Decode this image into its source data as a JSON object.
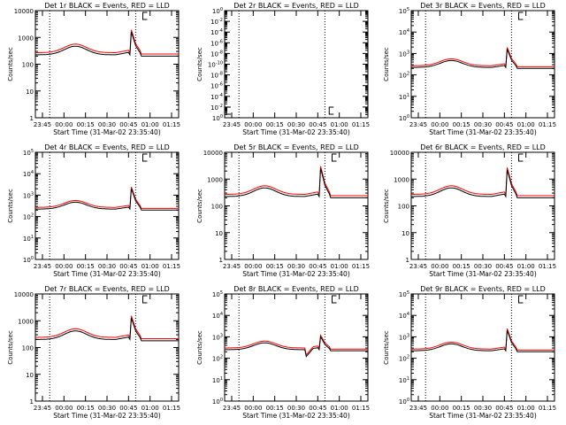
{
  "chart_data": [
    {
      "type": "line",
      "title": "Det 1r BLACK = Events, RED = LLD",
      "xlabel": "Start Time (31-Mar-02 23:35:40)",
      "ylabel": "Counts/sec",
      "xticks": [
        "23:45",
        "00:00",
        "00:15",
        "00:30",
        "00:45",
        "01:00",
        "01:15"
      ],
      "xlim": [
        0,
        100
      ],
      "yscale": "log",
      "ylim_exp": [
        0,
        4
      ],
      "ytick_style": "plain",
      "ytick_labels": [
        "1",
        "10",
        "100",
        "1000",
        "10000"
      ],
      "markers": [
        10,
        70
      ],
      "bracket": {
        "y": "top",
        "x": 75
      },
      "shape": "std",
      "base_exp": 2.35,
      "lld_offset": 0.08,
      "spike_exp": 3.2,
      "series": [
        {
          "name": "Events",
          "color": "#000000"
        },
        {
          "name": "LLD",
          "color": "#ff0000"
        }
      ]
    },
    {
      "type": "line",
      "title": "Det 2r BLACK = Events, RED = LLD",
      "xlabel": "Start Time (31-Mar-02 23:35:40)",
      "ylabel": "Counts/sec",
      "xticks": [
        "23:45",
        "00:00",
        "00:15",
        "00:30",
        "00:45",
        "01:00",
        "01:15"
      ],
      "xlim": [
        0,
        100
      ],
      "yscale": "log",
      "ylim_exp": [
        0,
        10
      ],
      "ytick_style": "sci",
      "ytick_labels": [
        "10^0",
        "10^-2",
        "10^-4",
        "10^-6",
        "10^-8",
        "10^-10",
        "10^-8",
        "10^-6",
        "10^-4",
        "10^-2",
        "10^0"
      ],
      "markers": [
        10,
        70
      ],
      "bracket": {
        "y": "bottom",
        "x": [
          0,
          73
        ]
      },
      "shape": "none",
      "series": [
        {
          "name": "Events",
          "color": "#000000"
        },
        {
          "name": "LLD",
          "color": "#ff0000"
        }
      ]
    },
    {
      "type": "line",
      "title": "Det 3r BLACK = Events, RED = LLD",
      "xlabel": "Start Time (31-Mar-02 23:35:40)",
      "ylabel": "Counts/sec",
      "xticks": [
        "23:45",
        "00:00",
        "00:15",
        "00:30",
        "00:45",
        "01:00",
        "01:15"
      ],
      "xlim": [
        0,
        100
      ],
      "yscale": "log",
      "ylim_exp": [
        0,
        5
      ],
      "ytick_style": "sci",
      "ytick_labels": [
        "10^0",
        "10^1",
        "10^2",
        "10^3",
        "10^4",
        "10^5"
      ],
      "markers": [
        10,
        70
      ],
      "bracket": {
        "y": "top",
        "x": 75
      },
      "shape": "std",
      "base_exp": 2.35,
      "lld_offset": 0.08,
      "spike_exp": 3.2,
      "series": [
        {
          "name": "Events",
          "color": "#000000"
        },
        {
          "name": "LLD",
          "color": "#ff0000"
        }
      ]
    },
    {
      "type": "line",
      "title": "Det 4r BLACK = Events, RED = LLD",
      "xlabel": "Start Time (31-Mar-02 23:35:40)",
      "ylabel": "Counts/sec",
      "xticks": [
        "23:45",
        "00:00",
        "00:15",
        "00:30",
        "00:45",
        "01:00",
        "01:15"
      ],
      "xlim": [
        0,
        100
      ],
      "yscale": "log",
      "ylim_exp": [
        0,
        5
      ],
      "ytick_style": "sci",
      "ytick_labels": [
        "10^0",
        "10^1",
        "10^2",
        "10^3",
        "10^4",
        "10^5"
      ],
      "markers": [
        10,
        70
      ],
      "bracket": {
        "y": "top",
        "x": 75
      },
      "shape": "std",
      "base_exp": 2.35,
      "lld_offset": 0.08,
      "spike_exp": 3.3,
      "series": [
        {
          "name": "Events",
          "color": "#000000"
        },
        {
          "name": "LLD",
          "color": "#ff0000"
        }
      ]
    },
    {
      "type": "line",
      "title": "Det 5r BLACK = Events, RED = LLD",
      "xlabel": "Start Time (31-Mar-02 23:35:40)",
      "ylabel": "Counts/sec",
      "xticks": [
        "23:45",
        "00:00",
        "00:15",
        "00:30",
        "00:45",
        "01:00",
        "01:15"
      ],
      "xlim": [
        0,
        100
      ],
      "yscale": "log",
      "ylim_exp": [
        0,
        4
      ],
      "ytick_style": "plain",
      "ytick_labels": [
        "1",
        "10",
        "100",
        "1000",
        "10000"
      ],
      "markers": [
        10,
        70
      ],
      "bracket": {
        "y": "top",
        "x": 75
      },
      "shape": "std",
      "base_exp": 2.35,
      "lld_offset": 0.08,
      "spike_exp": 3.4,
      "series": [
        {
          "name": "Events",
          "color": "#000000"
        },
        {
          "name": "LLD",
          "color": "#ff0000"
        }
      ]
    },
    {
      "type": "line",
      "title": "Det 6r BLACK = Events, RED = LLD",
      "xlabel": "Start Time (31-Mar-02 23:35:40)",
      "ylabel": "Counts/sec",
      "xticks": [
        "23:45",
        "00:00",
        "00:15",
        "00:30",
        "00:45",
        "01:00",
        "01:15"
      ],
      "xlim": [
        0,
        100
      ],
      "yscale": "log",
      "ylim_exp": [
        0,
        4
      ],
      "ytick_style": "plain",
      "ytick_labels": [
        "1",
        "10",
        "100",
        "1000",
        "10000"
      ],
      "markers": [
        10,
        70
      ],
      "bracket": {
        "y": "top",
        "x": 75
      },
      "shape": "std",
      "base_exp": 2.35,
      "lld_offset": 0.08,
      "spike_exp": 3.35,
      "series": [
        {
          "name": "Events",
          "color": "#000000"
        },
        {
          "name": "LLD",
          "color": "#ff0000"
        }
      ]
    },
    {
      "type": "line",
      "title": "Det 7r BLACK = Events, RED = LLD",
      "xlabel": "Start Time (31-Mar-02 23:35:40)",
      "ylabel": "Counts/sec",
      "xticks": [
        "23:45",
        "00:00",
        "00:15",
        "00:30",
        "00:45",
        "01:00",
        "01:15"
      ],
      "xlim": [
        0,
        100
      ],
      "yscale": "log",
      "ylim_exp": [
        0,
        4
      ],
      "ytick_style": "plain",
      "ytick_labels": [
        "1",
        "10",
        "100",
        "1000",
        "10000"
      ],
      "markers": [
        10,
        70
      ],
      "bracket": {
        "y": "top",
        "x": 75
      },
      "shape": "std",
      "base_exp": 2.3,
      "lld_offset": 0.08,
      "spike_exp": 3.1,
      "series": [
        {
          "name": "Events",
          "color": "#000000"
        },
        {
          "name": "LLD",
          "color": "#ff0000"
        }
      ]
    },
    {
      "type": "line",
      "title": "Det 8r BLACK = Events, RED = LLD",
      "xlabel": "Start Time (31-Mar-02 23:35:40)",
      "ylabel": "Counts/sec",
      "xticks": [
        "23:45",
        "00:00",
        "00:15",
        "00:30",
        "00:45",
        "01:00",
        "01:15"
      ],
      "xlim": [
        0,
        100
      ],
      "yscale": "log",
      "ylim_exp": [
        0,
        5
      ],
      "ytick_style": "sci",
      "ytick_labels": [
        "10^0",
        "10^1",
        "10^2",
        "10^3",
        "10^4",
        "10^5"
      ],
      "markers": [
        10,
        70
      ],
      "bracket": {
        "y": "top",
        "x": 75
      },
      "shape": "det8",
      "base_exp": 2.4,
      "lld_offset": 0.08,
      "spike_exp": 3.0,
      "series": [
        {
          "name": "Events",
          "color": "#000000"
        },
        {
          "name": "LLD",
          "color": "#ff0000"
        }
      ]
    },
    {
      "type": "line",
      "title": "Det 9r BLACK = Events, RED = LLD",
      "xlabel": "Start Time (31-Mar-02 23:35:40)",
      "ylabel": "Counts/sec",
      "xticks": [
        "23:45",
        "00:00",
        "00:15",
        "00:30",
        "00:45",
        "01:00",
        "01:15"
      ],
      "xlim": [
        0,
        100
      ],
      "yscale": "log",
      "ylim_exp": [
        0,
        5
      ],
      "ytick_style": "sci",
      "ytick_labels": [
        "10^0",
        "10^1",
        "10^2",
        "10^3",
        "10^4",
        "10^5"
      ],
      "markers": [
        10,
        70
      ],
      "bracket": {
        "y": "top",
        "x": 75
      },
      "shape": "std",
      "base_exp": 2.35,
      "lld_offset": 0.08,
      "spike_exp": 3.3,
      "series": [
        {
          "name": "Events",
          "color": "#000000"
        },
        {
          "name": "LLD",
          "color": "#ff0000"
        }
      ]
    }
  ]
}
